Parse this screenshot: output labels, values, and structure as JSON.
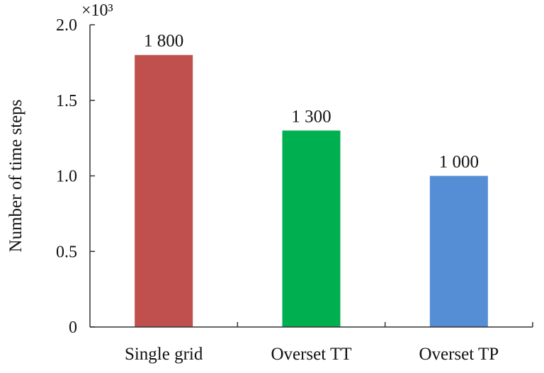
{
  "chart_data": {
    "type": "bar",
    "title": "",
    "xlabel": "",
    "ylabel": "Number of time steps",
    "y_multiplier_label": "×10³",
    "categories": [
      "Single grid",
      "Overset TT",
      "Overset TP"
    ],
    "values": [
      1.8,
      1.3,
      1.0
    ],
    "data_labels": [
      "1 800",
      "1 300",
      "1 000"
    ],
    "bar_colors": [
      "#c0504d",
      "#00b050",
      "#558ed5"
    ],
    "ylim": [
      0,
      2.0
    ],
    "yticks": [
      0,
      0.5,
      1.0,
      1.5,
      2.0
    ],
    "ytick_labels": [
      "0",
      "0.5",
      "1.0",
      "1.5",
      "2.0"
    ],
    "grid": false,
    "legend": "none"
  }
}
